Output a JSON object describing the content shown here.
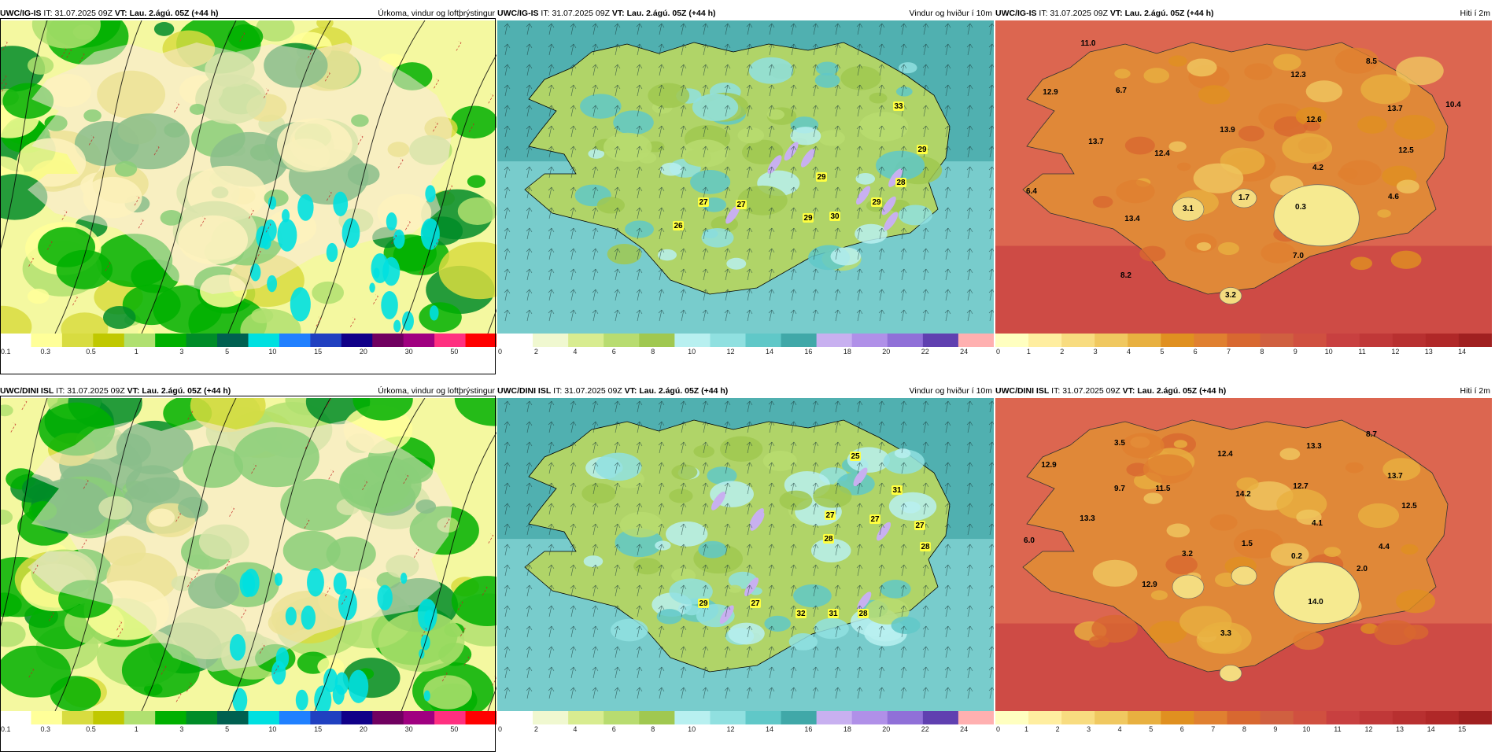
{
  "colors": {
    "precip": [
      "#ffffff",
      "#ffff99",
      "#d8dc40",
      "#c0c800",
      "#b0e070",
      "#00b000",
      "#008c28",
      "#006050",
      "#00e0e0",
      "#2080ff",
      "#2040c0",
      "#100088",
      "#700060",
      "#a00080",
      "#ff3080",
      "#ff0000"
    ],
    "wind": [
      "#ffffff",
      "#f0f8d0",
      "#d8ec90",
      "#b8dc70",
      "#a0c850",
      "#b8f0f0",
      "#90e0e0",
      "#60c8c8",
      "#40a8a8",
      "#c8b0f0",
      "#b090e8",
      "#9070d8",
      "#6040b0",
      "#ffb0b0"
    ],
    "temp": [
      "#ffffc0",
      "#ffeea0",
      "#f8dc80",
      "#f0c860",
      "#e8b040",
      "#e09020",
      "#e08030",
      "#d86830",
      "#d06040",
      "#d05040",
      "#c84040",
      "#c03838",
      "#b83030",
      "#b02828",
      "#a02020"
    ]
  },
  "panels": [
    {
      "id": "igis-precip",
      "model": "UWC/IG-IS",
      "it_label": "IT:",
      "it": "31.07.2025 09Z",
      "vt_label": "VT: Lau. 2.ágú. 05Z (+44 h)",
      "title": "Úrkoma, vindur og loftþrýstingur",
      "type": "precip",
      "ticks": [
        "0.1",
        "0.3",
        "0.5",
        "1",
        "3",
        "5",
        "10",
        "15",
        "20",
        "30",
        "50"
      ],
      "map_labels": []
    },
    {
      "id": "igis-wind",
      "model": "UWC/IG-IS",
      "it_label": "IT:",
      "it": "31.07.2025 09Z",
      "vt_label": "VT: Lau. 2.ágú. 05Z (+44 h)",
      "title": "Vindur og hviður í 10m",
      "type": "wind",
      "ticks": [
        "0",
        "2",
        "4",
        "6",
        "8",
        "10",
        "12",
        "14",
        "16",
        "18",
        "20",
        "22",
        "24"
      ],
      "map_labels": [
        "33",
        "29",
        "29",
        "28",
        "27",
        "27",
        "29",
        "30",
        "26",
        "29"
      ]
    },
    {
      "id": "igis-temp",
      "model": "UWC/IG-IS",
      "it_label": "IT:",
      "it": "31.07.2025 09Z",
      "vt_label": "VT: Lau. 2.ágú. 05Z (+44 h)",
      "title": "Hiti í 2m",
      "type": "temp",
      "ticks": [
        "0",
        "1",
        "2",
        "3",
        "4",
        "5",
        "6",
        "7",
        "8",
        "9",
        "10",
        "11",
        "12",
        "13",
        "14"
      ],
      "map_labels": [
        "11.0",
        "12.9",
        "6.7",
        "13.7",
        "12.4",
        "13.9",
        "12.3",
        "8.5",
        "12.6",
        "13.7",
        "10.4",
        "12.5",
        "4.2",
        "6.4",
        "3.1",
        "1.7",
        "0.3",
        "4.6",
        "13.4",
        "7.0",
        "8.2",
        "3.2"
      ]
    },
    {
      "id": "dini-precip",
      "model": "UWC/DINI ISL",
      "it_label": "IT:",
      "it": "31.07.2025 09Z",
      "vt_label": "VT: Lau. 2.ágú. 05Z (+44 h)",
      "title": "Úrkoma, vindur og loftþrýstingur",
      "type": "precip",
      "ticks": [
        "0.1",
        "0.3",
        "0.5",
        "1",
        "3",
        "5",
        "10",
        "15",
        "20",
        "30",
        "50"
      ],
      "map_labels": []
    },
    {
      "id": "dini-wind",
      "model": "UWC/DINI ISL",
      "it_label": "IT:",
      "it": "31.07.2025 09Z",
      "vt_label": "VT: Lau. 2.ágú. 05Z (+44 h)",
      "title": "Vindur og hviður í 10m",
      "type": "wind",
      "ticks": [
        "0",
        "2",
        "4",
        "6",
        "8",
        "10",
        "12",
        "14",
        "16",
        "18",
        "20",
        "22",
        "24"
      ],
      "map_labels": [
        "25",
        "31",
        "27",
        "27",
        "28",
        "27",
        "28",
        "27",
        "29",
        "32",
        "31",
        "28"
      ]
    },
    {
      "id": "dini-temp",
      "model": "UWC/DINI ISL",
      "it_label": "IT:",
      "it": "31.07.2025 09Z",
      "vt_label": "VT: Lau. 2.ágú. 05Z (+44 h)",
      "title": "Hiti í 2m",
      "type": "temp",
      "ticks": [
        "0",
        "1",
        "2",
        "3",
        "4",
        "5",
        "6",
        "7",
        "8",
        "9",
        "10",
        "11",
        "12",
        "13",
        "14",
        "15"
      ],
      "map_labels": [
        "3.5",
        "13.3",
        "8.7",
        "12.9",
        "12.4",
        "9.7",
        "11.5",
        "14.2",
        "12.7",
        "13.7",
        "13.3",
        "12.5",
        "4.1",
        "6.0",
        "3.2",
        "1.5",
        "0.2",
        "2.0",
        "4.4",
        "12.9",
        "14.0",
        "3.3"
      ]
    }
  ]
}
